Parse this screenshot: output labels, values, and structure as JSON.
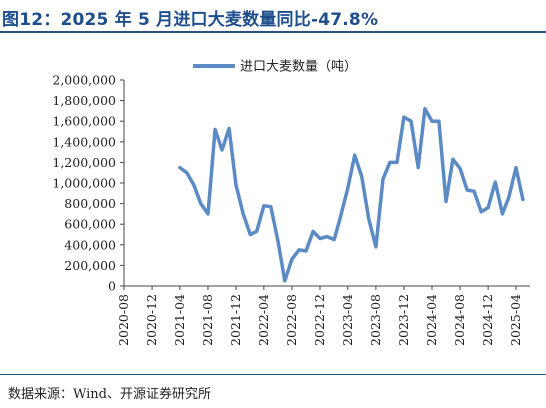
{
  "header": {
    "title": "图12：2025 年 5 月进口大麦数量同比-47.8%"
  },
  "footer": {
    "source": "数据来源：Wind、开源证券研究所"
  },
  "colors": {
    "line": "#5b8ac4",
    "title": "#1f4e8c",
    "axis": "#444444"
  },
  "chart_data": {
    "type": "line",
    "title": "",
    "xlabel": "",
    "ylabel": "",
    "legend": "top-center",
    "grid": false,
    "ylim": [
      0,
      2000000
    ],
    "yticks": [
      "0",
      "200,000",
      "400,000",
      "600,000",
      "800,000",
      "1,000,000",
      "1,200,000",
      "1,400,000",
      "1,600,000",
      "1,800,000",
      "2,000,000"
    ],
    "xticks": [
      "2020-08",
      "2020-12",
      "2021-04",
      "2021-08",
      "2021-12",
      "2022-04",
      "2022-08",
      "2022-12",
      "2023-04",
      "2023-08",
      "2023-12",
      "2024-04",
      "2024-08",
      "2024-12",
      "2025-04"
    ],
    "series": [
      {
        "name": "进口大麦数量（吨）",
        "x": [
          "2021-04",
          "2021-05",
          "2021-06",
          "2021-07",
          "2021-08",
          "2021-09",
          "2021-10",
          "2021-11",
          "2021-12",
          "2022-01",
          "2022-02",
          "2022-03",
          "2022-04",
          "2022-05",
          "2022-06",
          "2022-07",
          "2022-08",
          "2022-09",
          "2022-10",
          "2022-11",
          "2022-12",
          "2023-01",
          "2023-02",
          "2023-03",
          "2023-04",
          "2023-05",
          "2023-06",
          "2023-07",
          "2023-08",
          "2023-09",
          "2023-10",
          "2023-11",
          "2023-12",
          "2024-01",
          "2024-02",
          "2024-03",
          "2024-04",
          "2024-05",
          "2024-06",
          "2024-07",
          "2024-08",
          "2024-09",
          "2024-10",
          "2024-11",
          "2024-12",
          "2025-01",
          "2025-02",
          "2025-03",
          "2025-04",
          "2025-05"
        ],
        "values": [
          1150000,
          1100000,
          980000,
          800000,
          700000,
          1520000,
          1320000,
          1530000,
          980000,
          700000,
          500000,
          530000,
          780000,
          770000,
          440000,
          50000,
          260000,
          350000,
          340000,
          530000,
          460000,
          480000,
          450000,
          680000,
          950000,
          1270000,
          1060000,
          650000,
          380000,
          1040000,
          1200000,
          1200000,
          1640000,
          1600000,
          1150000,
          1720000,
          1600000,
          1600000,
          820000,
          1230000,
          1140000,
          930000,
          920000,
          720000,
          760000,
          1010000,
          700000,
          860000,
          1150000,
          840000
        ]
      }
    ]
  }
}
